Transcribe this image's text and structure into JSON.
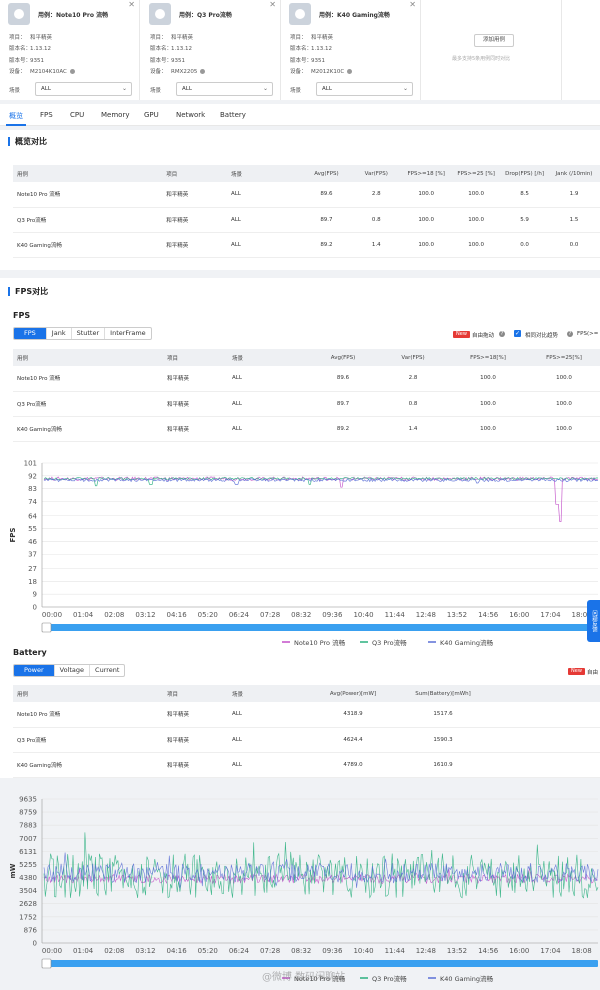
{
  "devices": [
    {
      "title": "用例：Note10 Pro 流畅",
      "project_label": "项目：",
      "project": "和平精英",
      "version_label": "版本名：",
      "version": "1.13.12",
      "build_label": "版本号：",
      "build": "9351",
      "device_label": "设备：",
      "device": "M2104K10AC",
      "scene_label": "场景",
      "scene": "ALL"
    },
    {
      "title": "用例：Q3 Pro流畅",
      "project_label": "项目：",
      "project": "和平精英",
      "version_label": "版本名：",
      "version": "1.13.12",
      "build_label": "版本号：",
      "build": "9351",
      "device_label": "设备：",
      "device": "RMX2205",
      "scene_label": "场景",
      "scene": "ALL"
    },
    {
      "title": "用例：K40 Gaming流畅",
      "project_label": "项目：",
      "project": "和平精英",
      "version_label": "版本名：",
      "version": "1.13.12",
      "build_label": "版本号：",
      "build": "9351",
      "device_label": "设备：",
      "device": "M2012K10C",
      "scene_label": "场景",
      "scene": "ALL"
    }
  ],
  "add_case": {
    "button": "添加用例",
    "hint": "最多支持5条用例同时对比"
  },
  "tabs": [
    "概览",
    "FPS",
    "CPU",
    "Memory",
    "GPU",
    "Network",
    "Battery"
  ],
  "overview": {
    "title": "概览对比",
    "headers": [
      "用例",
      "项目",
      "场景",
      "Avg(FPS)",
      "Var(FPS)",
      "FPS>=18 [%]",
      "FPS>=25 [%]",
      "Drop(FPS) [/h]",
      "Jank (/10min)"
    ],
    "rows": [
      [
        "Note10 Pro 流畅",
        "和平精英",
        "ALL",
        "89.6",
        "2.8",
        "100.0",
        "100.0",
        "8.5",
        "1.9"
      ],
      [
        "Q3 Pro流畅",
        "和平精英",
        "ALL",
        "89.7",
        "0.8",
        "100.0",
        "100.0",
        "5.9",
        "1.5"
      ],
      [
        "K40 Gaming流畅",
        "和平精英",
        "ALL",
        "89.2",
        "1.4",
        "100.0",
        "100.0",
        "0.0",
        "0.0"
      ]
    ]
  },
  "fps": {
    "section_title": "FPS对比",
    "sub_title": "FPS",
    "tabs": [
      "FPS",
      "Jank",
      "Stutter",
      "InterFrame"
    ],
    "new_badge": "New",
    "free_drag": "自由拖动",
    "align_label": "相同对比趋势",
    "fps_cut": "FPS(>=",
    "headers": [
      "用例",
      "项目",
      "场景",
      "Avg(FPS)",
      "Var(FPS)",
      "FPS>=18[%]",
      "FPS>=25[%]"
    ],
    "rows": [
      [
        "Note10 Pro 流畅",
        "和平精英",
        "ALL",
        "89.6",
        "2.8",
        "100.0",
        "100.0"
      ],
      [
        "Q3 Pro流畅",
        "和平精英",
        "ALL",
        "89.7",
        "0.8",
        "100.0",
        "100.0"
      ],
      [
        "K40 Gaming流畅",
        "和平精英",
        "ALL",
        "89.2",
        "1.4",
        "100.0",
        "100.0"
      ]
    ]
  },
  "battery": {
    "sub_title": "Battery",
    "tabs": [
      "Power",
      "Voltage",
      "Current"
    ],
    "new_badge": "New",
    "free_drag": "自由",
    "headers": [
      "用例",
      "项目",
      "场景",
      "Avg(Power)[mW]",
      "Sum(Battery)[mWh]"
    ],
    "rows": [
      [
        "Note10 Pro 流畅",
        "和平精英",
        "ALL",
        "4318.9",
        "1517.6"
      ],
      [
        "Q3 Pro流畅",
        "和平精英",
        "ALL",
        "4624.4",
        "1590.3"
      ],
      [
        "K40 Gaming流畅",
        "和平精英",
        "ALL",
        "4789.0",
        "1610.9"
      ]
    ]
  },
  "side_tab": "问题反馈",
  "watermark": "@微博 数码闲聊站",
  "colors": {
    "accent": "#1a73e8",
    "note10": "#c24fc9",
    "q3": "#2bb07f",
    "k40": "#5b6fd6",
    "new_badge": "#e53935"
  },
  "chart_data": [
    {
      "type": "line",
      "ylabel": "FPS",
      "ylim": [
        0,
        101
      ],
      "yticks": [
        0,
        9,
        18,
        27,
        37,
        46,
        55,
        64,
        74,
        83,
        92,
        101
      ],
      "xticks": [
        "00:00",
        "01:04",
        "02:08",
        "03:12",
        "04:16",
        "05:20",
        "06:24",
        "07:28",
        "08:32",
        "09:36",
        "10:40",
        "11:44",
        "12:48",
        "13:52",
        "14:56",
        "16:00",
        "17:04",
        "18:08"
      ],
      "legend": "bottom",
      "grid": true,
      "series": [
        {
          "name": "Note10 Pro 流畅",
          "color": "#c24fc9",
          "baseline": 90,
          "noise": 1.2,
          "dips": [
            [
              16.9,
              60
            ],
            [
              16.8,
              72
            ],
            [
              9.75,
              84
            ]
          ]
        },
        {
          "name": "Q3 Pro流畅",
          "color": "#2bb07f",
          "baseline": 90,
          "noise": 0.8,
          "dips": [
            [
              1.7,
              85
            ],
            [
              3.5,
              86
            ],
            [
              8.7,
              86
            ]
          ]
        },
        {
          "name": "K40 Gaming流畅",
          "color": "#5b6fd6",
          "baseline": 89,
          "noise": 1.0,
          "dips": [
            [
              6.3,
              86
            ],
            [
              14.2,
              87
            ]
          ]
        }
      ]
    },
    {
      "type": "line",
      "ylabel": "mW",
      "ylim": [
        0,
        9635
      ],
      "yticks": [
        0,
        876,
        1752,
        2628,
        3504,
        4380,
        5255,
        6131,
        7007,
        7883,
        8759,
        9635
      ],
      "xticks": [
        "00:00",
        "01:04",
        "02:08",
        "03:12",
        "04:16",
        "05:20",
        "06:24",
        "07:28",
        "08:32",
        "09:36",
        "10:40",
        "11:44",
        "12:48",
        "13:52",
        "14:56",
        "16:00",
        "17:04",
        "18:08"
      ],
      "legend": "bottom",
      "grid": true,
      "series": [
        {
          "name": "Note10 Pro 流畅",
          "color": "#c24fc9",
          "baseline": 4300,
          "noise": 300
        },
        {
          "name": "Q3 Pro流畅",
          "color": "#2bb07f",
          "baseline": 4500,
          "noise": 1500
        },
        {
          "name": "K40 Gaming流畅",
          "color": "#5b6fd6",
          "baseline": 4700,
          "noise": 650
        }
      ]
    }
  ]
}
